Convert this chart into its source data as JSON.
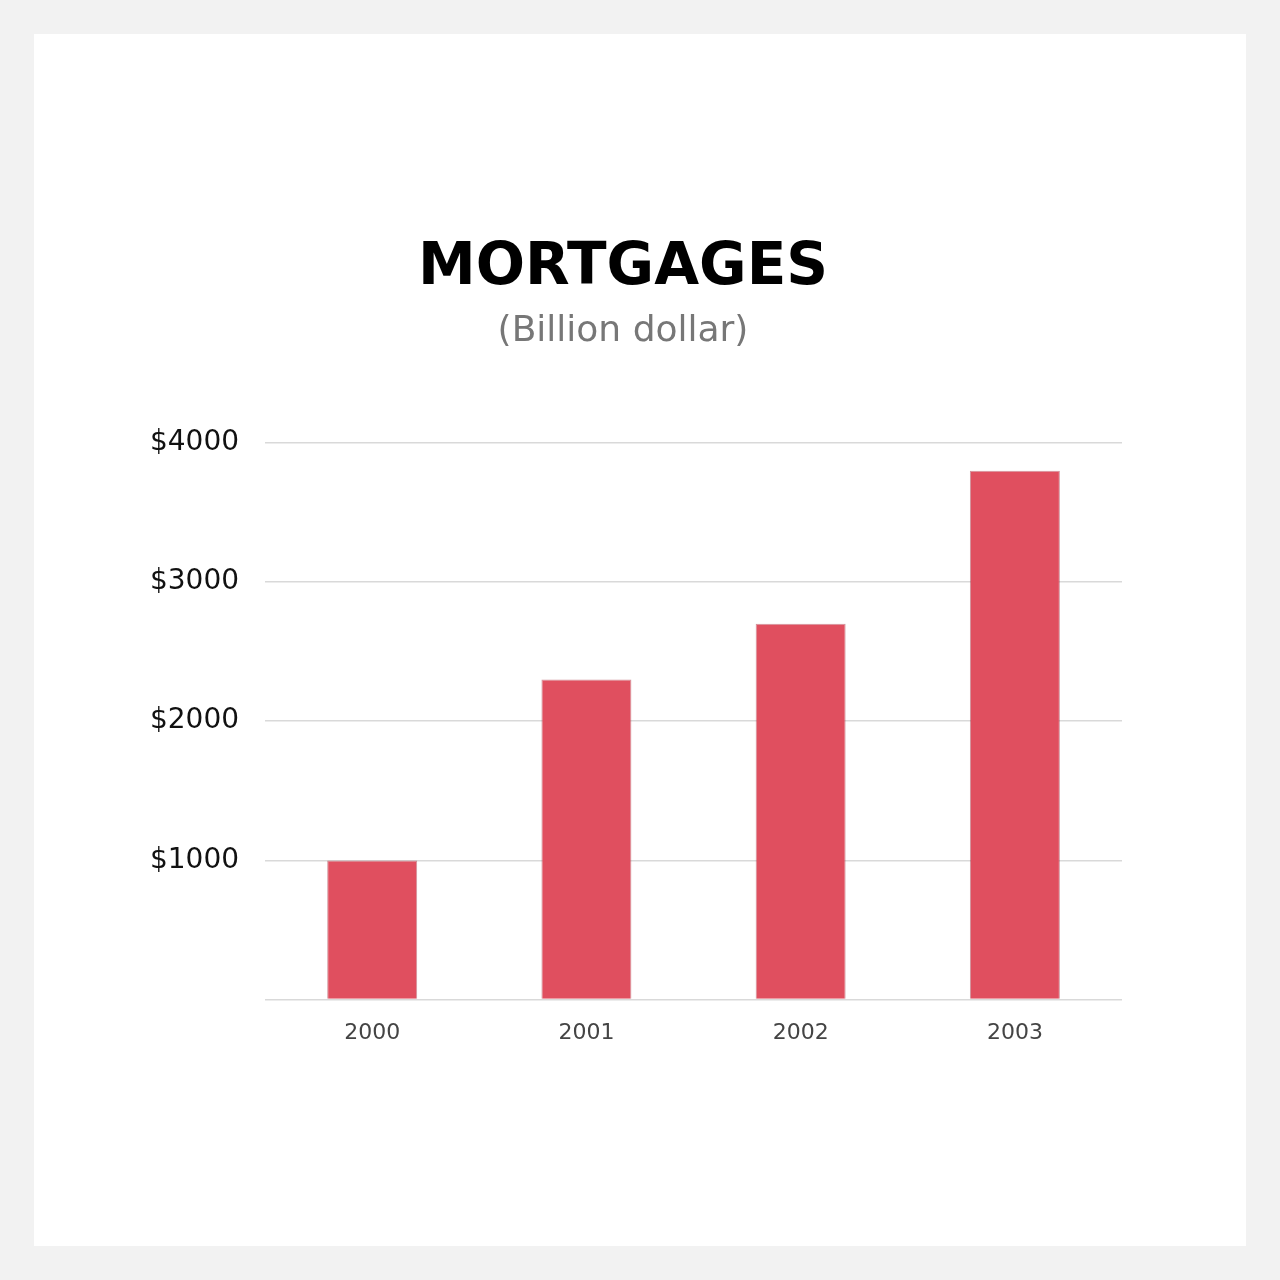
{
  "chart_data": {
    "type": "bar",
    "title": "MORTGAGES",
    "subtitle": "(Billion dollar)",
    "categories": [
      "2000",
      "2001",
      "2002",
      "2003"
    ],
    "values": [
      1000,
      2300,
      2700,
      3800
    ],
    "color": "#e04f5f",
    "ylim": [
      0,
      4000
    ],
    "yticks": [
      {
        "value": 0,
        "label": null
      },
      {
        "value": 1000,
        "label": "$1000"
      },
      {
        "value": 2000,
        "label": "$2000"
      },
      {
        "value": 3000,
        "label": "$3000"
      },
      {
        "value": 4000,
        "label": "$4000"
      }
    ],
    "grid": "y",
    "legend": false
  }
}
